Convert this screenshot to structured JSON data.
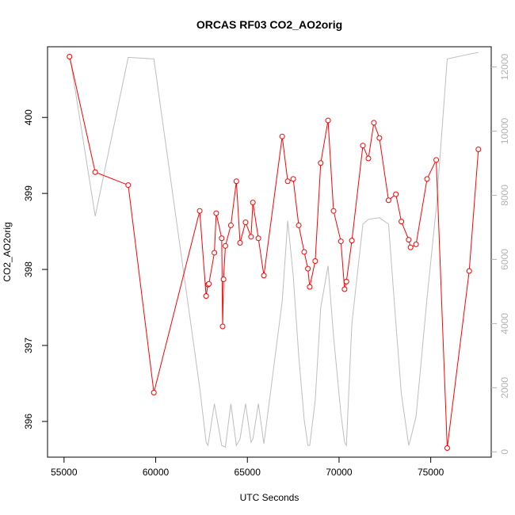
{
  "chart_data": {
    "type": "line",
    "title": "ORCAS RF03 CO2_AO2orig",
    "xlabel": "UTC Seconds",
    "ylabel": "CO2_AO2orig",
    "xlim": [
      54100,
      78300
    ],
    "ylim": [
      395.53,
      400.93
    ],
    "y2lim": [
      -165,
      12630
    ],
    "x_ticks": [
      55000,
      60000,
      65000,
      70000,
      75000
    ],
    "y_ticks": [
      396,
      397,
      398,
      399,
      400
    ],
    "y2_ticks": [
      0,
      2000,
      4000,
      6000,
      8000,
      10000,
      12000
    ],
    "grid": false,
    "series": [
      {
        "color": "#ff0000",
        "marker": "open-circle",
        "axis": "left",
        "x": [
          55300,
          56700,
          58500,
          59900,
          62400,
          62750,
          62850,
          62900,
          63200,
          63300,
          63600,
          63650,
          63700,
          63800,
          64100,
          64400,
          64600,
          64900,
          65200,
          65300,
          65600,
          65900,
          66900,
          67200,
          67500,
          67800,
          68100,
          68300,
          68400,
          68700,
          69000,
          69400,
          69700,
          70100,
          70300,
          70400,
          70700,
          71300,
          71600,
          71900,
          72200,
          72700,
          73100,
          73400,
          73800,
          73900,
          74200,
          74800,
          75300,
          75900,
          77100,
          77600
        ],
        "y": [
          400.8,
          399.28,
          399.11,
          396.38,
          398.77,
          397.65,
          397.8,
          397.81,
          398.22,
          398.74,
          398.41,
          397.25,
          397.87,
          398.31,
          398.58,
          399.16,
          398.35,
          398.62,
          398.43,
          398.88,
          398.41,
          397.92,
          399.75,
          399.16,
          399.19,
          398.58,
          398.23,
          398.01,
          397.77,
          398.11,
          399.4,
          399.96,
          398.77,
          398.37,
          397.74,
          397.84,
          398.38,
          399.63,
          399.46,
          399.93,
          399.73,
          398.91,
          398.99,
          398.63,
          398.39,
          398.29,
          398.33,
          399.19,
          399.44,
          395.65,
          397.98,
          399.58
        ]
      },
      {
        "color": "#bebebe",
        "axis": "right",
        "x": [
          55300,
          56700,
          58500,
          59900,
          62400,
          62750,
          62850,
          63200,
          63600,
          63800,
          64100,
          64400,
          64600,
          64900,
          65200,
          65300,
          65600,
          65900,
          66900,
          67200,
          67500,
          67800,
          68100,
          68300,
          68400,
          68700,
          69000,
          69400,
          69700,
          70100,
          70300,
          70400,
          70700,
          71300,
          71600,
          72200,
          72700,
          73100,
          73400,
          73800,
          73900,
          74200,
          74800,
          75300,
          75900,
          77100,
          77600
        ],
        "y": [
          12400,
          7350,
          12300,
          12250,
          2000,
          300,
          200,
          1500,
          200,
          150,
          1500,
          200,
          400,
          1500,
          300,
          400,
          1500,
          250,
          4700,
          7200,
          5500,
          3000,
          1000,
          200,
          200,
          1600,
          4500,
          5800,
          3600,
          1200,
          300,
          200,
          4000,
          7100,
          7250,
          7300,
          7100,
          4000,
          1800,
          200,
          400,
          1100,
          4800,
          7600,
          12250,
          12400,
          12450
        ]
      }
    ]
  }
}
